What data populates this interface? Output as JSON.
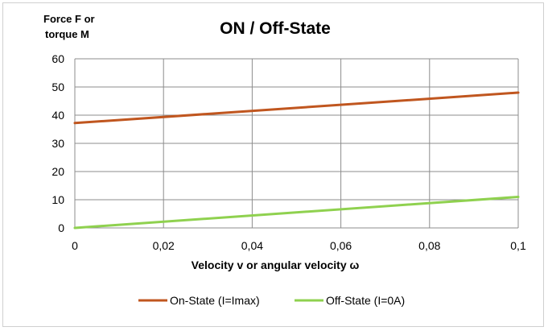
{
  "chart_data": {
    "type": "line",
    "title": "ON / Off-State",
    "ylabel_lines": [
      "Force F or",
      "torque M"
    ],
    "xlabel": "Velocity v or angular velocity ω",
    "xlim": [
      0,
      0.1
    ],
    "ylim": [
      0,
      60
    ],
    "x_ticks": [
      0,
      0.02,
      0.04,
      0.06,
      0.08,
      0.1
    ],
    "x_tick_labels": [
      "0",
      "0,02",
      "0,04",
      "0,06",
      "0,08",
      "0,1"
    ],
    "y_ticks": [
      0,
      10,
      20,
      30,
      40,
      50,
      60
    ],
    "y_tick_labels": [
      "0",
      "10",
      "20",
      "30",
      "40",
      "50",
      "60"
    ],
    "grid": true,
    "legend_position": "bottom",
    "series": [
      {
        "name": "On-State (I=Imax)",
        "color": "#c0561f",
        "x": [
          0,
          0.1
        ],
        "y": [
          37.2,
          48.0
        ]
      },
      {
        "name": "Off-State (I=0A)",
        "color": "#8fd14f",
        "x": [
          0,
          0.1
        ],
        "y": [
          0,
          11.0
        ]
      }
    ]
  }
}
